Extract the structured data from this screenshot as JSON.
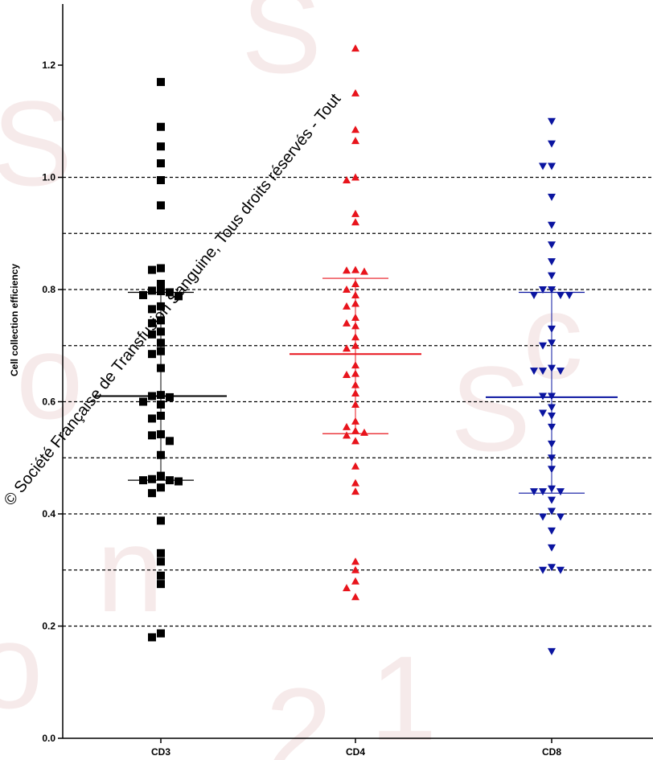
{
  "chart_data": {
    "type": "scatter",
    "title": "",
    "xlabel": "",
    "ylabel": "Cell collection efficiency",
    "ylim": [
      0,
      1.3
    ],
    "yticks": [
      0.0,
      0.2,
      0.4,
      0.6,
      0.8,
      1.0,
      1.2
    ],
    "ytick_labels": [
      "0.0",
      "0.2",
      "0.4",
      "0.6",
      "0.8",
      "1.0",
      "1.2"
    ],
    "reference_lines": [
      0.2,
      0.3,
      0.4,
      0.5,
      0.6,
      0.7,
      0.8,
      0.9,
      1.0
    ],
    "categories": [
      "CD3",
      "CD4",
      "CD8"
    ],
    "series": [
      {
        "category": "CD3",
        "color": "#000000",
        "marker": "square",
        "median": 0.61,
        "q1": 0.46,
        "q3": 0.795,
        "values": [
          1.17,
          1.09,
          1.055,
          1.025,
          0.995,
          0.95,
          0.838,
          0.835,
          0.81,
          0.798,
          0.797,
          0.795,
          0.79,
          0.788,
          0.77,
          0.765,
          0.745,
          0.74,
          0.725,
          0.72,
          0.705,
          0.69,
          0.685,
          0.66,
          0.612,
          0.61,
          0.608,
          0.6,
          0.595,
          0.575,
          0.57,
          0.542,
          0.54,
          0.53,
          0.505,
          0.468,
          0.462,
          0.46,
          0.46,
          0.458,
          0.447,
          0.437,
          0.388,
          0.33,
          0.315,
          0.29,
          0.275,
          0.187,
          0.18
        ]
      },
      {
        "category": "CD4",
        "color": "#e8141c",
        "marker": "triangle-up",
        "median": 0.685,
        "q1": 0.543,
        "q3": 0.82,
        "values": [
          1.23,
          1.15,
          1.085,
          1.065,
          1.0,
          0.995,
          0.935,
          0.92,
          0.835,
          0.834,
          0.832,
          0.81,
          0.8,
          0.79,
          0.775,
          0.77,
          0.75,
          0.74,
          0.735,
          0.715,
          0.7,
          0.695,
          0.665,
          0.65,
          0.648,
          0.63,
          0.615,
          0.595,
          0.565,
          0.555,
          0.548,
          0.545,
          0.54,
          0.53,
          0.485,
          0.455,
          0.44,
          0.315,
          0.3,
          0.28,
          0.268,
          0.252
        ]
      },
      {
        "category": "CD8",
        "color": "#0a14a0",
        "marker": "triangle-down",
        "median": 0.608,
        "q1": 0.437,
        "q3": 0.795,
        "values": [
          1.1,
          1.06,
          1.02,
          1.02,
          0.965,
          0.915,
          0.88,
          0.85,
          0.825,
          0.8,
          0.8,
          0.79,
          0.79,
          0.79,
          0.73,
          0.705,
          0.7,
          0.66,
          0.655,
          0.655,
          0.655,
          0.61,
          0.61,
          0.59,
          0.58,
          0.575,
          0.555,
          0.525,
          0.5,
          0.48,
          0.445,
          0.44,
          0.44,
          0.44,
          0.425,
          0.405,
          0.395,
          0.395,
          0.37,
          0.34,
          0.305,
          0.3,
          0.3,
          0.155
        ]
      }
    ]
  },
  "watermark": {
    "text": "© Société Française de Transfusion Sanguine, Tous droits réservés - Tout"
  },
  "colors": {
    "background": "#ffffff",
    "axis": "#000000",
    "gridline": "#000000",
    "bg_watermark": "#e8c4c4"
  }
}
